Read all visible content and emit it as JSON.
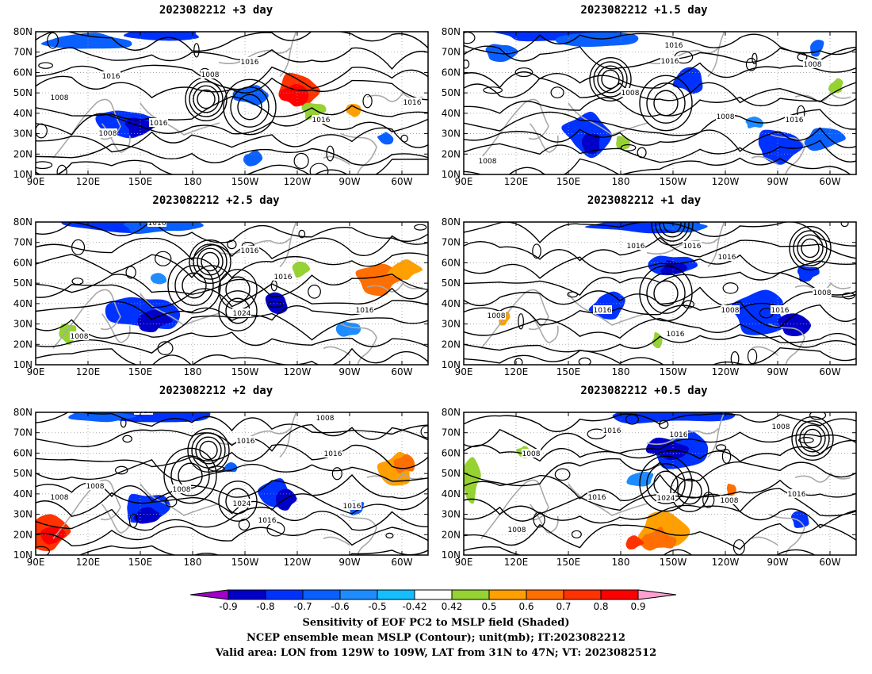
{
  "panels": [
    {
      "title": "2023082212 +3 day",
      "lat_labels": [
        "80N",
        "70N",
        "60N",
        "50N",
        "40N",
        "30N",
        "20N",
        "10N"
      ],
      "lat_min": 10
    },
    {
      "title": "2023082212 +1.5 day",
      "lat_labels": [
        "80N",
        "70N",
        "60N",
        "50N",
        "40N",
        "30N",
        "20N",
        "10N"
      ],
      "lat_min": 10
    },
    {
      "title": "2023082212 +2.5 day",
      "lat_labels": [
        "80N",
        "70N",
        "60N",
        "50N",
        "40N",
        "30N",
        "20N",
        "10N"
      ],
      "lat_min": 10
    },
    {
      "title": "2023082212 +1 day",
      "lat_labels": [
        "80N",
        "70N",
        "60N",
        "50N",
        "40N",
        "30N",
        "20N",
        "10N"
      ],
      "lat_min": 10
    },
    {
      "title": "2023082212 +2 day",
      "lat_labels": [
        "80N",
        "70N",
        "60N",
        "50N",
        "40N",
        "30N",
        "20N",
        "10N"
      ],
      "lat_min": 10
    },
    {
      "title": "2023082212 +0.5 day",
      "lat_labels": [
        "80N",
        "70N",
        "60N",
        "50N",
        "40N",
        "30N",
        "20N",
        "10N"
      ],
      "lat_min": 10
    }
  ],
  "lon_labels": [
    "90E",
    "120E",
    "150E",
    "180",
    "150W",
    "120W",
    "90W",
    "60W"
  ],
  "contour_labels": [
    "1008",
    "1016",
    "1024"
  ],
  "colorbar": {
    "ticks": [
      "-0.9",
      "-0.8",
      "-0.7",
      "-0.6",
      "-0.5",
      "-0.42",
      "0.42",
      "0.5",
      "0.6",
      "0.7",
      "0.8",
      "0.9"
    ],
    "colors": [
      "#a000c8",
      "#0000c8",
      "#0032ff",
      "#0a5fff",
      "#1e8cff",
      "#14beff",
      "#ffffff",
      "#96d232",
      "#ffa000",
      "#ff6e00",
      "#ff3200",
      "#ff0000",
      "#ff9fd2"
    ]
  },
  "captions": [
    "Sensitivity of EOF PC2 to MSLP field (Shaded)",
    "NCEP ensemble mean MSLP (Contour); unit(mb); IT:2023082212",
    "Valid area: LON from 129W to 109W, LAT from 31N to 47N; VT: 2023082512"
  ]
}
